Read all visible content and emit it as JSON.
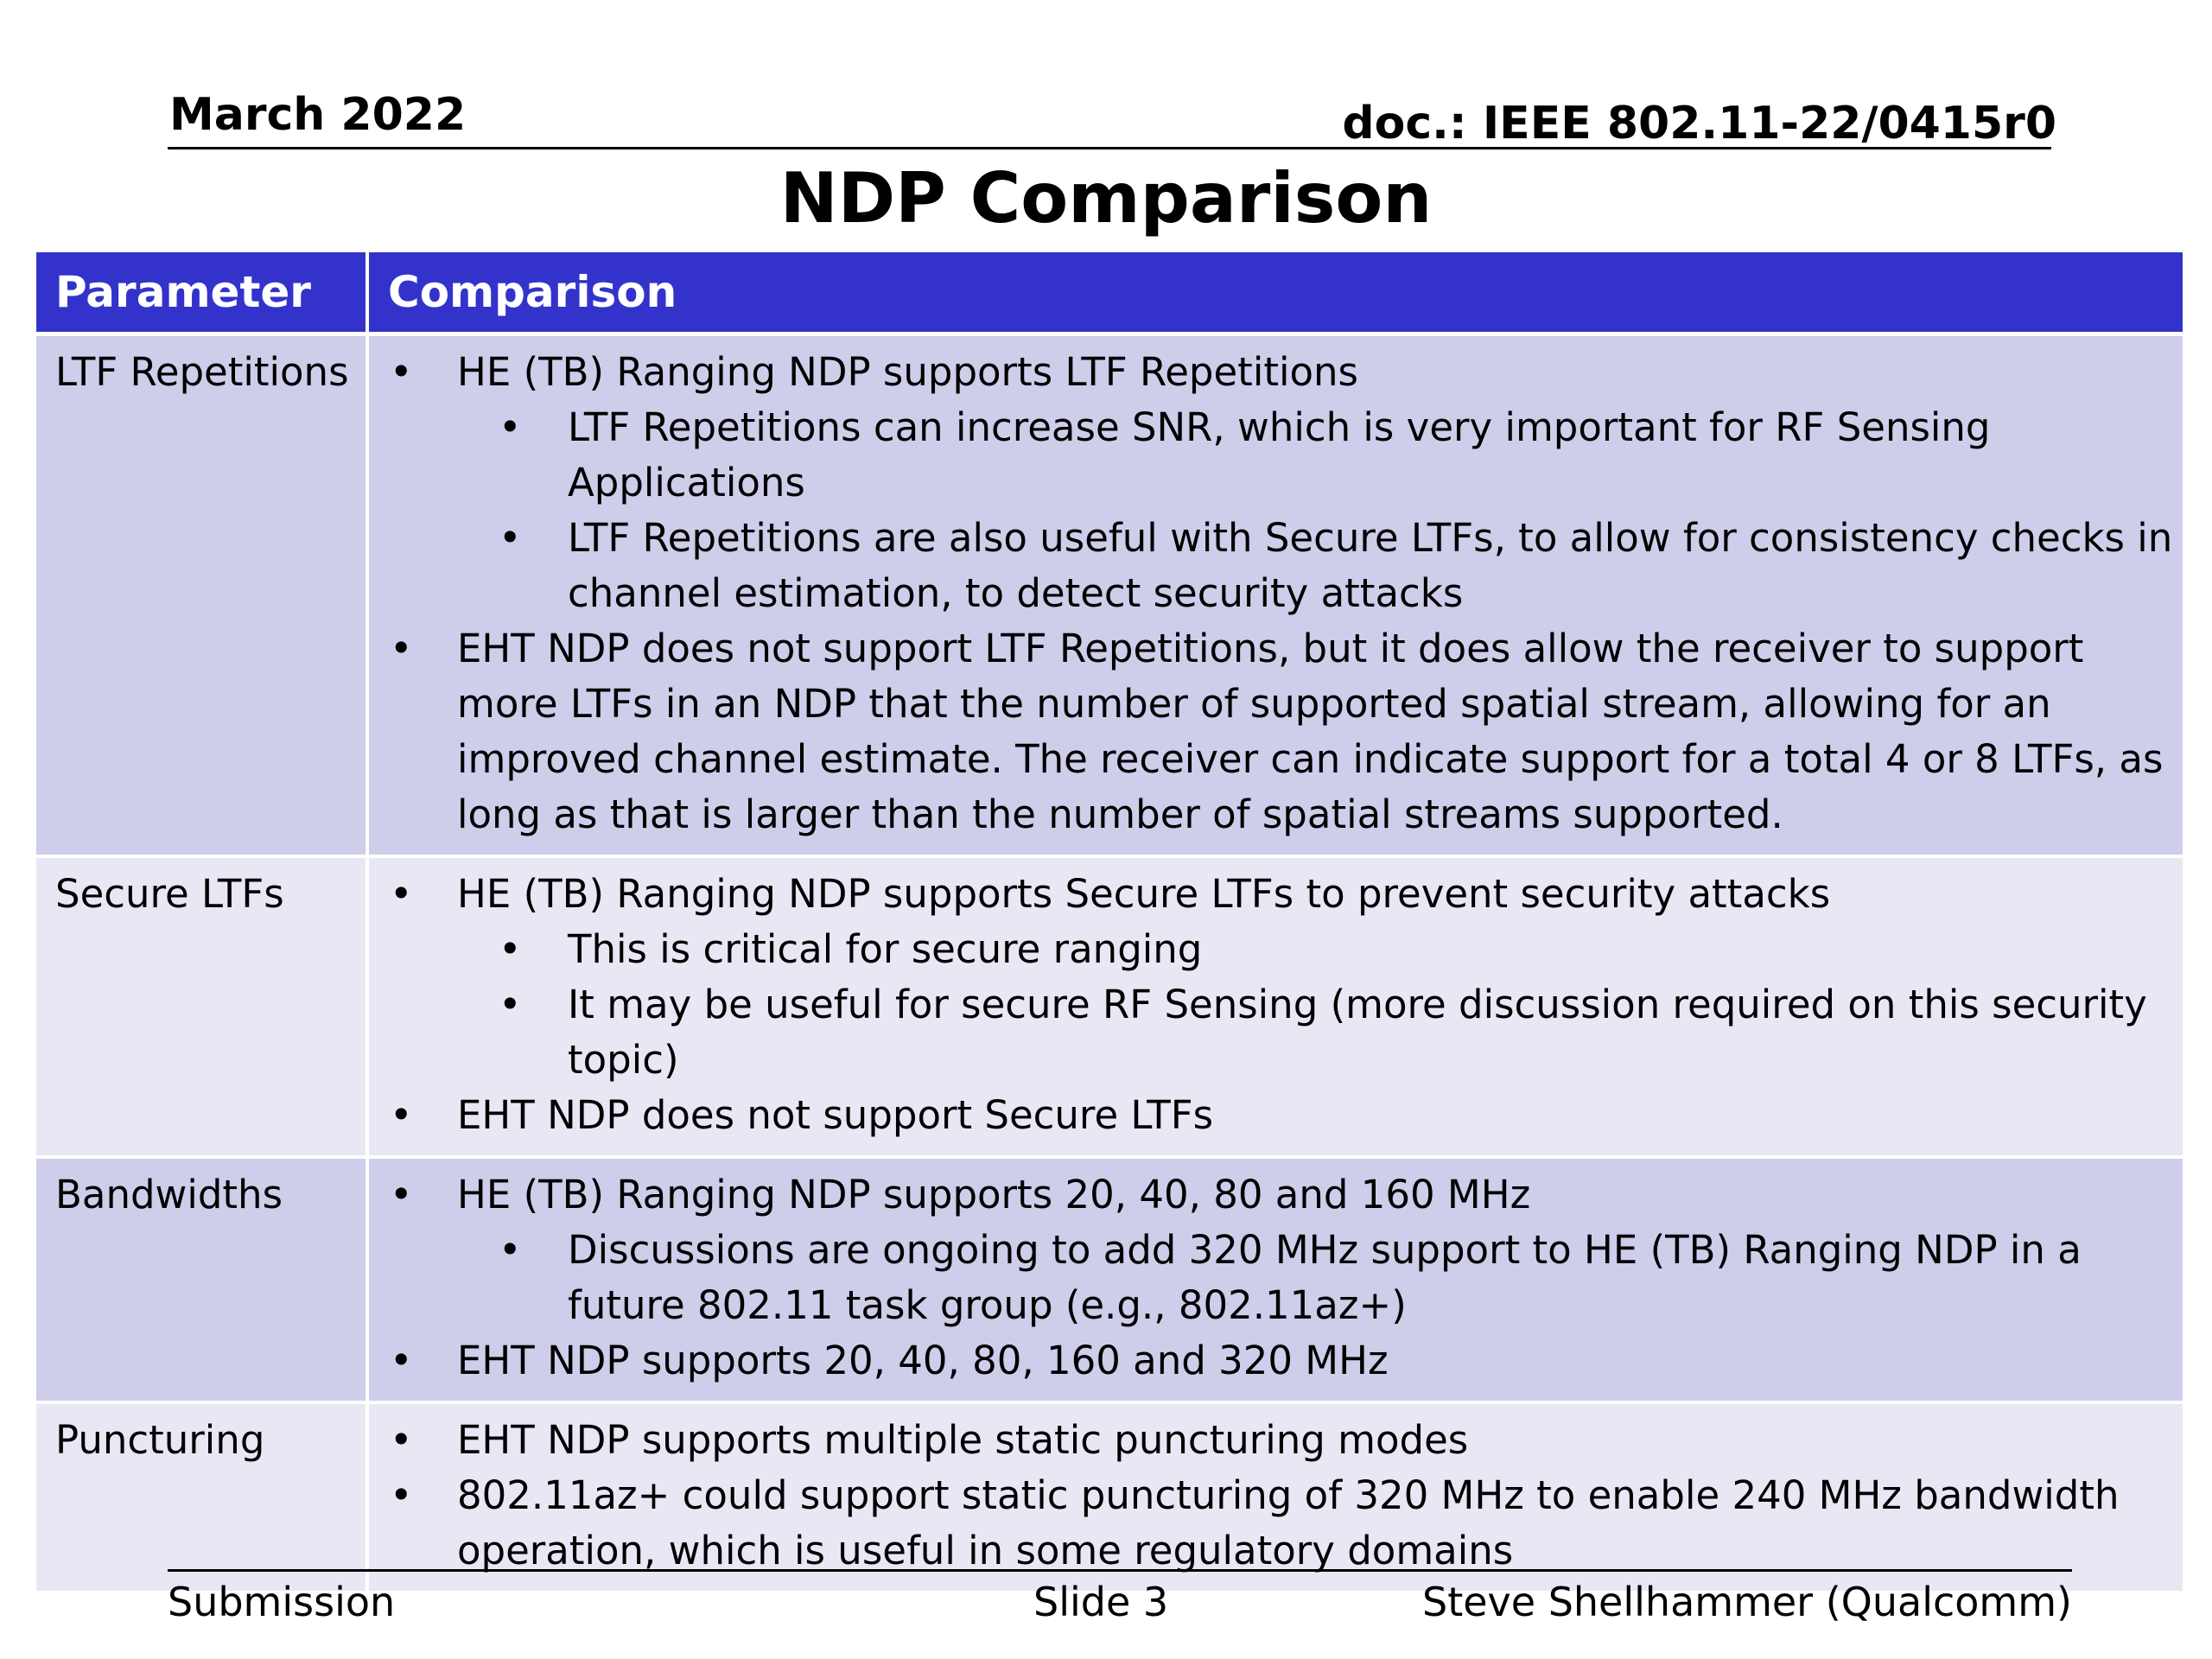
{
  "header": {
    "date": "March 2022",
    "doc_id": "doc.: IEEE 802.11-22/0415r0"
  },
  "title": "NDP Comparison",
  "table": {
    "headers": [
      "Parameter",
      "Comparison"
    ],
    "rows": [
      {
        "parameter": "LTF Repetitions",
        "bullets": [
          {
            "level": 1,
            "text": "HE (TB) Ranging NDP supports LTF Repetitions"
          },
          {
            "level": 2,
            "text": "LTF Repetitions can increase SNR, which is very important for RF Sensing Applications"
          },
          {
            "level": 2,
            "text": "LTF Repetitions are also useful with Secure LTFs, to allow for consistency checks in channel estimation, to detect security attacks"
          },
          {
            "level": 1,
            "text": "EHT NDP does not support LTF Repetitions, but it does allow the receiver to support more LTFs in an NDP that the number of supported spatial stream, allowing for an improved channel estimate. The receiver can indicate support for a total 4 or 8 LTFs, as long as that is larger than the number of spatial streams supported."
          }
        ]
      },
      {
        "parameter": "Secure LTFs",
        "bullets": [
          {
            "level": 1,
            "text": "HE (TB) Ranging NDP supports Secure LTFs to prevent security attacks"
          },
          {
            "level": 2,
            "text": "This is critical for secure ranging"
          },
          {
            "level": 2,
            "text": "It may be useful for secure RF Sensing (more discussion required on this security topic)"
          },
          {
            "level": 1,
            "text": "EHT NDP does not support Secure LTFs"
          }
        ]
      },
      {
        "parameter": "Bandwidths",
        "bullets": [
          {
            "level": 1,
            "text": "HE (TB) Ranging NDP supports 20, 40, 80 and 160 MHz"
          },
          {
            "level": 2,
            "text": "Discussions are ongoing to add 320 MHz support to HE (TB) Ranging NDP in a future 802.11 task group (e.g., 802.11az+)"
          },
          {
            "level": 1,
            "text": "EHT NDP supports 20, 40, 80, 160 and 320 MHz"
          }
        ]
      },
      {
        "parameter": "Puncturing",
        "bullets": [
          {
            "level": 1,
            "text": "EHT NDP supports multiple static puncturing modes"
          },
          {
            "level": 1,
            "text": "802.11az+ could support static puncturing of 320 MHz to enable 240 MHz bandwidth operation, which is useful in some regulatory domains"
          }
        ]
      }
    ]
  },
  "footer": {
    "left": "Submission",
    "center": "Slide 3",
    "right": "Steve Shellhammer (Qualcomm)"
  },
  "colors": {
    "header_bg": "#3333cc",
    "row_dark": "#cecdea",
    "row_light": "#e8e8f4"
  }
}
